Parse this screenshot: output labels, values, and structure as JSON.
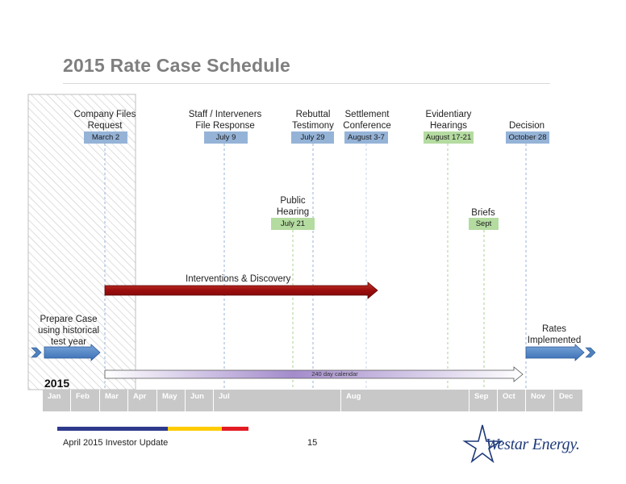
{
  "title": "2015 Rate Case Schedule",
  "events_top": [
    {
      "label": "Company Files\nRequest",
      "date": "March 2"
    },
    {
      "label": "Staff / Interveners\nFile Response",
      "date": "July 9"
    },
    {
      "label": "Rebuttal\nTestimony",
      "date": "July 29"
    },
    {
      "label": "Settlement\nConference",
      "date": "August 3-7"
    },
    {
      "label": "Evidentiary\nHearings",
      "date": "August 17-21"
    },
    {
      "label": "Decision",
      "date": "October 28"
    }
  ],
  "events_mid": [
    {
      "label": "Public\nHearing",
      "date": "July 21"
    },
    {
      "label": "Briefs",
      "date": "Sept"
    }
  ],
  "interventions_label": "Interventions & Discovery",
  "prepare_label": "Prepare Case\nusing historical\ntest year",
  "rates_label": "Rates\nImplemented",
  "calendar_label": "240 day calendar",
  "year": "2015",
  "months": [
    "Jan",
    "Feb",
    "Mar",
    "Apr",
    "May",
    "Jun",
    "Jul",
    "Aug",
    "Sep",
    "Oct",
    "Nov",
    "Dec"
  ],
  "footer": {
    "text": "April 2015 Investor Update",
    "page": "15",
    "logo": "Westar Energy."
  },
  "colors": {
    "blue_tag": "#95b3d7",
    "green_tag": "#b4dba0",
    "red_arrow": "#a50f15",
    "blue_arrow": "#4f81bd",
    "calendar_arrow": "#b9a6d6",
    "footer_navy": "#2e3a8c",
    "footer_yellow": "#ffcc00",
    "footer_red": "#e31b23"
  }
}
